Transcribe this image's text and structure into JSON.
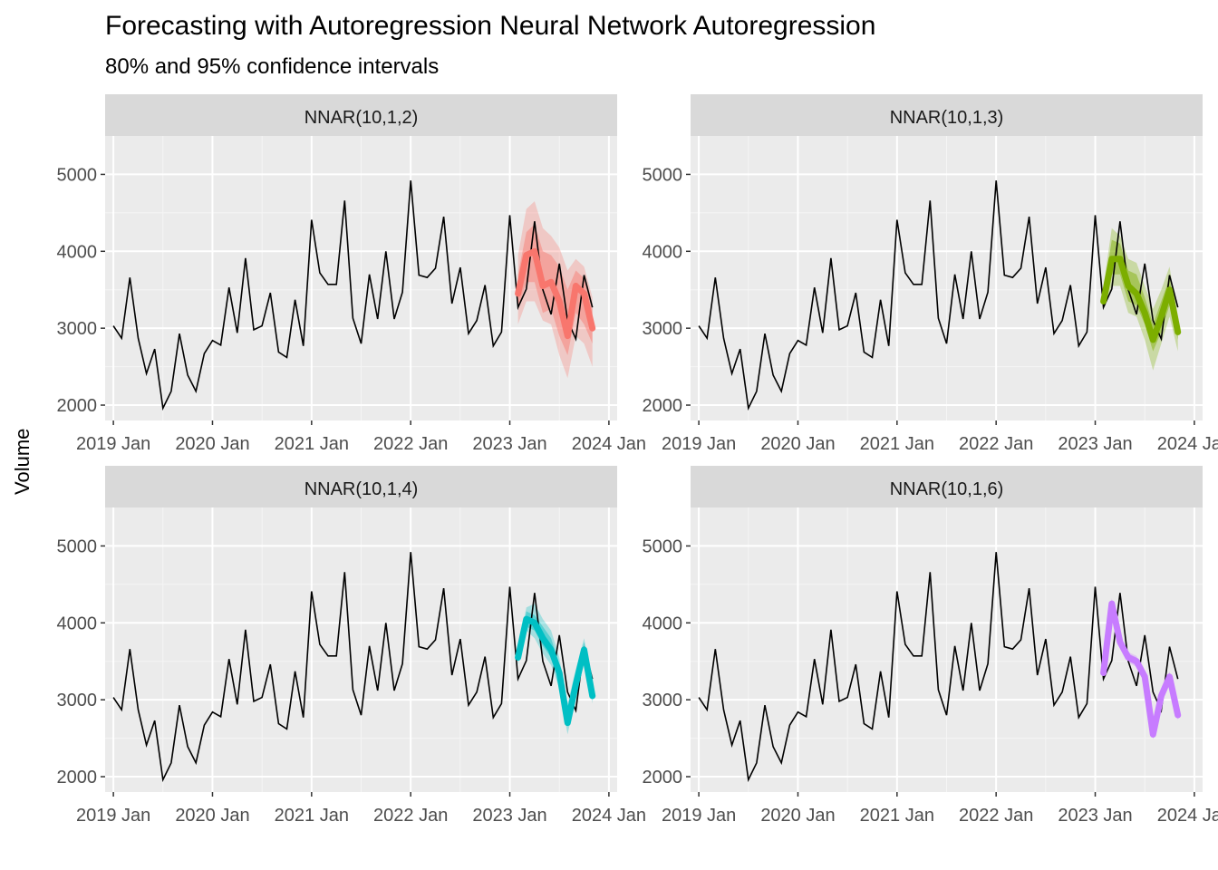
{
  "title": "Forecasting with Autoregression Neural Network Autoregression",
  "subtitle": "80% and 95% confidence intervals",
  "ylabel": "Volume",
  "chart_data": {
    "type": "line",
    "facets": [
      "NNAR(10,1,2)",
      "NNAR(10,1,3)",
      "NNAR(10,1,4)",
      "NNAR(10,1,6)"
    ],
    "ylim": [
      1800,
      5500
    ],
    "y_ticks": [
      2000,
      3000,
      4000,
      5000
    ],
    "x_range": [
      "2018-12",
      "2024-02"
    ],
    "x_ticks": [
      "2019 Jan",
      "2020 Jan",
      "2021 Jan",
      "2022 Jan",
      "2023 Jan",
      "2024 Jan"
    ],
    "grid": true,
    "history": {
      "start": "2019-01",
      "values": [
        3030,
        2870,
        3660,
        2870,
        2410,
        2730,
        1960,
        2180,
        2930,
        2390,
        2180,
        2670,
        2840,
        2780,
        3530,
        2940,
        3910,
        2980,
        3030,
        3460,
        2690,
        2620,
        3370,
        2770,
        4410,
        3720,
        3570,
        3570,
        4660,
        3130,
        2800,
        3700,
        3120,
        4000,
        3120,
        3470,
        4920,
        3690,
        3660,
        3780,
        4450,
        3320,
        3790,
        2930,
        3100,
        3560,
        2770,
        2950,
        4470,
        3270,
        3510,
        4390,
        3500,
        3180,
        3840,
        3100,
        2860,
        3690,
        3270
      ]
    },
    "forecasts": [
      {
        "name": "NNAR(10,1,2)",
        "color": "#F8766D",
        "start": "2023-02",
        "mean": [
          3450,
          3950,
          4000,
          3550,
          3600,
          3350,
          2900,
          3550,
          3450,
          3000
        ],
        "lo80": [
          3250,
          3600,
          3600,
          3200,
          3250,
          2900,
          2650,
          3200,
          3050,
          2800
        ],
        "hi80": [
          3700,
          4250,
          4350,
          4000,
          3950,
          3800,
          3500,
          3750,
          3650,
          3250
        ],
        "lo95": [
          3050,
          3350,
          3350,
          3100,
          3050,
          2650,
          2350,
          2900,
          2800,
          2500
        ],
        "hi95": [
          3950,
          4550,
          4650,
          4300,
          4200,
          4050,
          3750,
          3900,
          3800,
          3400
        ]
      },
      {
        "name": "NNAR(10,1,3)",
        "color": "#7CAE00",
        "start": "2023-02",
        "mean": [
          3350,
          3900,
          3900,
          3550,
          3450,
          3200,
          2850,
          3150,
          3500,
          2950
        ],
        "lo80": [
          3300,
          3700,
          3700,
          3350,
          3300,
          3050,
          2700,
          2950,
          3300,
          2850
        ],
        "hi80": [
          3450,
          4150,
          4100,
          3750,
          3700,
          3400,
          3050,
          3350,
          3650,
          3050
        ],
        "lo95": [
          3250,
          3550,
          3550,
          3200,
          3150,
          2850,
          2450,
          2800,
          3150,
          2700
        ],
        "hi95": [
          3550,
          4300,
          4200,
          3900,
          3850,
          3550,
          3250,
          3500,
          3800,
          3150
        ]
      },
      {
        "name": "NNAR(10,1,4)",
        "color": "#00BFC4",
        "start": "2023-02",
        "mean": [
          3550,
          4050,
          4000,
          3800,
          3650,
          3350,
          2700,
          3200,
          3650,
          3050
        ],
        "lo80": [
          3500,
          3950,
          3900,
          3700,
          3550,
          3250,
          2650,
          3150,
          3550,
          3000
        ],
        "hi80": [
          3600,
          4150,
          4100,
          3950,
          3800,
          3450,
          2800,
          3300,
          3750,
          3150
        ],
        "lo95": [
          3450,
          3900,
          3800,
          3600,
          3450,
          3150,
          2550,
          3050,
          3500,
          2950
        ],
        "hi95": [
          3650,
          4200,
          4250,
          4050,
          3900,
          3550,
          2950,
          3400,
          3800,
          3250
        ]
      },
      {
        "name": "NNAR(10,1,6)",
        "color": "#C77CFF",
        "start": "2023-02",
        "mean": [
          3350,
          4250,
          3750,
          3550,
          3500,
          3300,
          2550,
          3050,
          3300,
          2800
        ],
        "lo80": [
          3320,
          4200,
          3700,
          3500,
          3450,
          3250,
          2500,
          3000,
          3250,
          2750
        ],
        "hi80": [
          3380,
          4300,
          3800,
          3600,
          3550,
          3350,
          2600,
          3100,
          3350,
          2850
        ],
        "lo95": [
          3300,
          4180,
          3680,
          3480,
          3430,
          3230,
          2480,
          2980,
          3230,
          2730
        ],
        "hi95": [
          3400,
          4320,
          3820,
          3620,
          3570,
          3370,
          2620,
          3120,
          3370,
          2870
        ]
      }
    ]
  }
}
